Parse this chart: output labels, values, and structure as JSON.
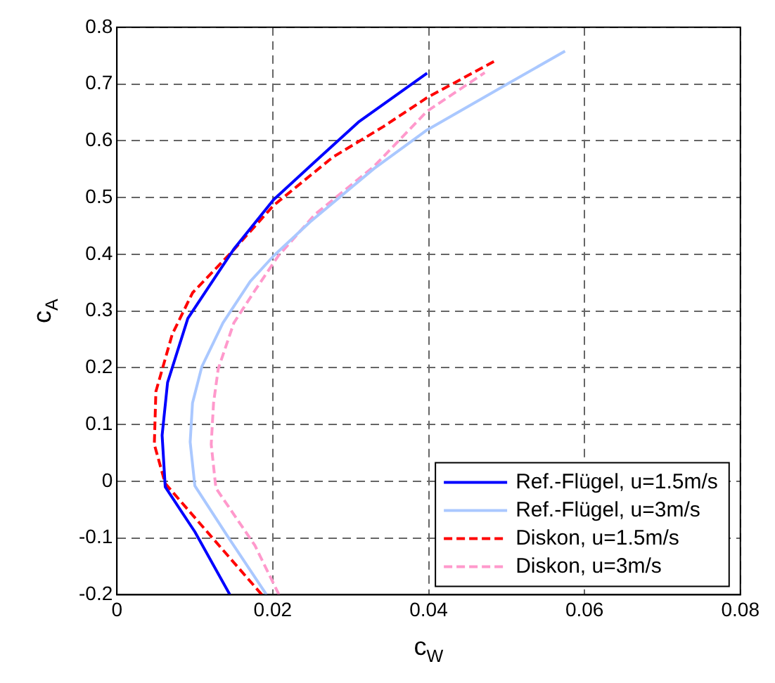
{
  "chart_data": {
    "type": "line",
    "xlabel": "c$_{W}$",
    "ylabel": "c$_{A}$",
    "xlim": [
      0,
      0.08
    ],
    "xticks": [
      0,
      0.02,
      0.04,
      0.06,
      0.08
    ],
    "ylim": [
      -0.2,
      0.8
    ],
    "yticks": [
      -0.2,
      -0.1,
      0,
      0.1,
      0.2,
      0.3,
      0.4,
      0.5,
      0.6,
      0.7,
      0.8
    ],
    "grid": true,
    "legend": "bottom right",
    "marker": "none",
    "series": [
      {
        "name": "Ref.-Flügel, u=1.5m/s",
        "color": "#0000ff",
        "line_style": "solid",
        "x": [
          0.0145,
          0.01,
          0.0062,
          0.0058,
          0.0065,
          0.0091,
          0.0133,
          0.015,
          0.0201,
          0.0254,
          0.031,
          0.0398
        ],
        "values": [
          -0.2,
          -0.089,
          -0.01,
          0.081,
          0.174,
          0.287,
          0.374,
          0.409,
          0.496,
          0.563,
          0.633,
          0.719
        ]
      },
      {
        "name": "Ref.-Flügel, u=3m/s",
        "color": "#aac8ff",
        "line_style": "solid",
        "x": [
          0.0192,
          0.0142,
          0.01,
          0.0094,
          0.0097,
          0.0109,
          0.0136,
          0.0171,
          0.0201,
          0.0248,
          0.033,
          0.0398,
          0.0501,
          0.0575
        ],
        "values": [
          -0.2,
          -0.097,
          -0.008,
          0.069,
          0.138,
          0.202,
          0.279,
          0.352,
          0.397,
          0.457,
          0.551,
          0.619,
          0.7,
          0.758
        ]
      },
      {
        "name": "Diskon, u=1.5m/s",
        "color": "#ff0000",
        "line_style": "dashed",
        "x": [
          0.0186,
          0.0136,
          0.0062,
          0.0048,
          0.005,
          0.0071,
          0.0097,
          0.0148,
          0.0201,
          0.0277,
          0.0342,
          0.0398,
          0.0488
        ],
        "values": [
          -0.2,
          -0.121,
          -0.004,
          0.065,
          0.158,
          0.259,
          0.332,
          0.405,
          0.486,
          0.571,
          0.625,
          0.676,
          0.743
        ]
      },
      {
        "name": "Diskon, u=3m/s",
        "color": "#ff99cc",
        "line_style": "dashed",
        "x": [
          0.0208,
          0.0177,
          0.0127,
          0.0121,
          0.0124,
          0.013,
          0.015,
          0.0177,
          0.0207,
          0.0254,
          0.033,
          0.0398,
          0.0472
        ],
        "values": [
          -0.2,
          -0.113,
          -0.012,
          0.065,
          0.138,
          0.198,
          0.279,
          0.336,
          0.397,
          0.47,
          0.555,
          0.652,
          0.72
        ]
      }
    ]
  }
}
